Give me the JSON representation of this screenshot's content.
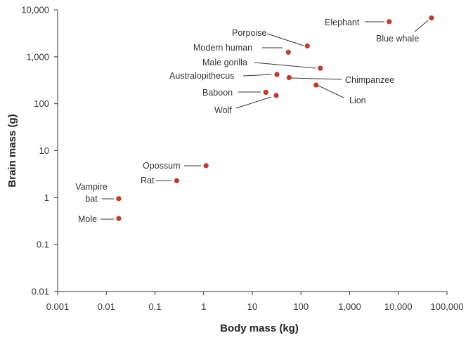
{
  "chart_data": {
    "type": "scatter",
    "title": "",
    "xlabel": "Body mass (kg)",
    "ylabel": "Brain mass (g)",
    "x_scale": "log",
    "y_scale": "log",
    "xlim": [
      0.001,
      100000
    ],
    "ylim": [
      0.01,
      10000
    ],
    "grid": false,
    "point_color": "#c0392b",
    "x_ticks": [
      {
        "value": 0.001,
        "label": "0.001"
      },
      {
        "value": 0.01,
        "label": "0.01"
      },
      {
        "value": 0.1,
        "label": "0.1"
      },
      {
        "value": 1,
        "label": "1"
      },
      {
        "value": 10,
        "label": "10"
      },
      {
        "value": 100,
        "label": "100"
      },
      {
        "value": 1000,
        "label": "1,000"
      },
      {
        "value": 10000,
        "label": "10,000"
      },
      {
        "value": 100000,
        "label": "100,000"
      }
    ],
    "y_ticks": [
      {
        "value": 0.01,
        "label": "0.01"
      },
      {
        "value": 0.1,
        "label": "0.1"
      },
      {
        "value": 1,
        "label": "1"
      },
      {
        "value": 10,
        "label": "10"
      },
      {
        "value": 100,
        "label": "100"
      },
      {
        "value": 1000,
        "label": "1,000"
      },
      {
        "value": 10000,
        "label": "10,000"
      }
    ],
    "points": [
      {
        "id": "elephant",
        "label": [
          "Elephant"
        ],
        "x": 6500,
        "y": 5600
      },
      {
        "id": "blue-whale",
        "label": [
          "Blue whale"
        ],
        "x": 48000,
        "y": 6700
      },
      {
        "id": "porpoise",
        "label": [
          "Porpoise"
        ],
        "x": 135,
        "y": 1700
      },
      {
        "id": "modern-human",
        "label": [
          "Modern human"
        ],
        "x": 55,
        "y": 1250
      },
      {
        "id": "male-gorilla",
        "label": [
          "Male gorilla"
        ],
        "x": 250,
        "y": 570
      },
      {
        "id": "australopithecus",
        "label": [
          "Australopithecus"
        ],
        "x": 32,
        "y": 420
      },
      {
        "id": "chimpanzee",
        "label": [
          "Chimpanzee"
        ],
        "x": 57,
        "y": 360
      },
      {
        "id": "lion",
        "label": [
          "Lion"
        ],
        "x": 205,
        "y": 250
      },
      {
        "id": "baboon",
        "label": [
          "Baboon"
        ],
        "x": 19,
        "y": 175
      },
      {
        "id": "wolf",
        "label": [
          "Wolf"
        ],
        "x": 31,
        "y": 150
      },
      {
        "id": "opossum",
        "label": [
          "Opossum"
        ],
        "x": 1.12,
        "y": 4.8
      },
      {
        "id": "rat",
        "label": [
          "Rat"
        ],
        "x": 0.28,
        "y": 2.3
      },
      {
        "id": "vampire-bat",
        "label": [
          "Vampire",
          "bat"
        ],
        "x": 0.018,
        "y": 0.95
      },
      {
        "id": "mole",
        "label": [
          "Mole"
        ],
        "x": 0.018,
        "y": 0.36
      }
    ]
  }
}
